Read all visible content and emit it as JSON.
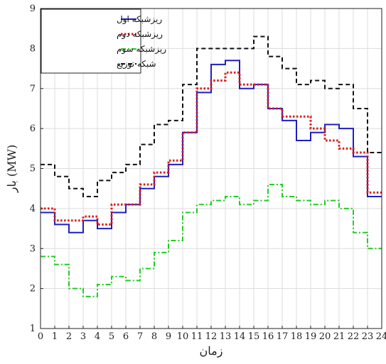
{
  "chart_data": {
    "type": "line",
    "step": true,
    "xlabel": "زمان",
    "ylabel": "بار (MW)",
    "xlim": [
      0,
      24
    ],
    "ylim": [
      1,
      9
    ],
    "xticks": [
      "0",
      "1",
      "2",
      "3",
      "4",
      "5",
      "6",
      "7",
      "8",
      "9",
      "10",
      "11",
      "12",
      "13",
      "14",
      "15",
      "16",
      "17",
      "18",
      "19",
      "20",
      "21",
      "22",
      "23",
      "24"
    ],
    "yticks": [
      "1",
      "2",
      "3",
      "4",
      "5",
      "6",
      "7",
      "8",
      "9"
    ],
    "grid": true,
    "legend_position": "top-left",
    "series": [
      {
        "name": "ریزشبکه اول",
        "color": "#1f1fbf",
        "dash": "solid",
        "values": [
          3.9,
          3.6,
          3.4,
          3.7,
          3.5,
          3.9,
          4.1,
          4.5,
          4.8,
          5.1,
          5.9,
          6.9,
          7.6,
          7.7,
          7.0,
          7.1,
          6.5,
          6.2,
          5.7,
          5.9,
          6.1,
          6.0,
          5.3,
          4.3
        ]
      },
      {
        "name": "ریزشبکه دوم",
        "color": "#e01a1a",
        "dash": "dotted",
        "values": [
          4.0,
          3.7,
          3.7,
          3.8,
          3.6,
          4.1,
          4.1,
          4.6,
          4.9,
          5.2,
          5.9,
          7.0,
          7.2,
          7.4,
          7.1,
          7.1,
          6.5,
          6.3,
          6.3,
          6.0,
          5.7,
          5.5,
          5.4,
          4.4
        ]
      },
      {
        "name": "ریزشبکه سوم",
        "color": "#22cc22",
        "dash": "dashdot",
        "values": [
          2.8,
          2.6,
          2.0,
          1.8,
          2.1,
          2.3,
          2.2,
          2.5,
          2.9,
          3.2,
          3.9,
          4.1,
          4.2,
          4.3,
          4.1,
          4.2,
          4.6,
          4.3,
          4.2,
          4.1,
          4.2,
          4.0,
          3.4,
          3.0
        ]
      },
      {
        "name": "شبکه توزیع",
        "color": "#111111",
        "dash": "dashed",
        "values": [
          5.1,
          4.8,
          4.5,
          4.3,
          4.7,
          4.9,
          5.1,
          5.6,
          6.1,
          6.2,
          7.1,
          8.0,
          8.0,
          8.0,
          8.0,
          8.3,
          7.8,
          7.5,
          7.1,
          7.2,
          7.0,
          7.1,
          6.5,
          5.4
        ]
      }
    ]
  }
}
